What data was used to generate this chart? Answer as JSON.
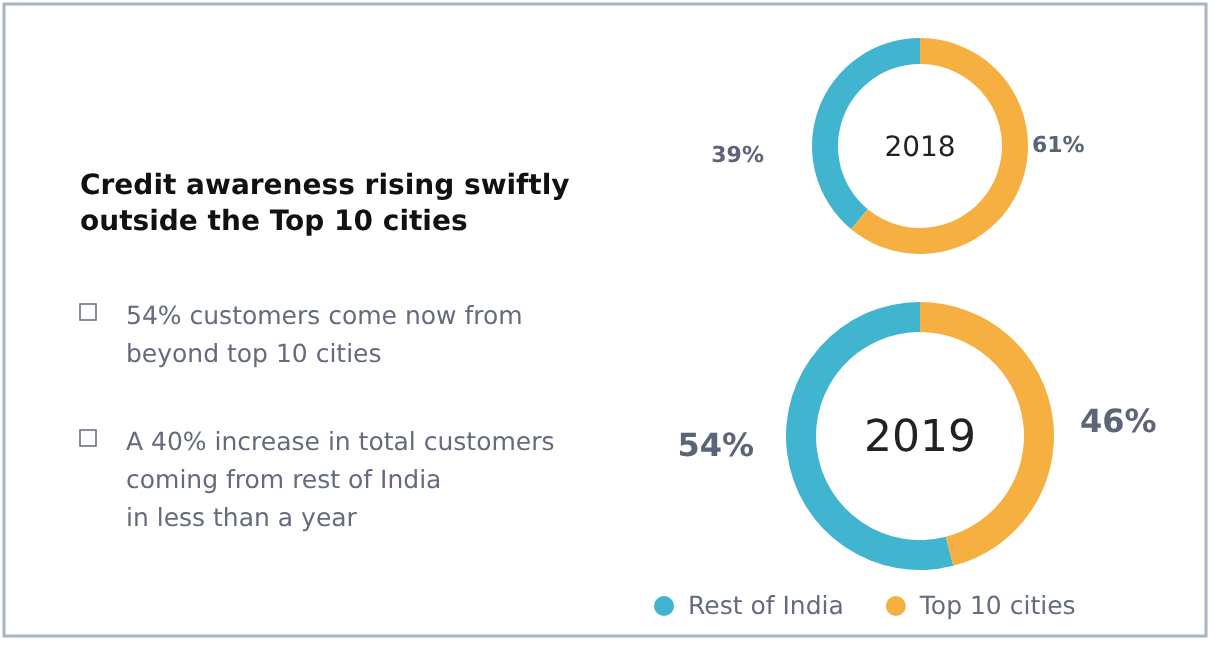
{
  "chart_data": [
    {
      "type": "other",
      "title": "Credit awareness rising swiftly\noutside the Top 10 cities",
      "annotations": [
        "54% customers come now from\nbeyond top 10 cities",
        "A 40% increase in total customers\ncoming from rest of India\nin less than a year"
      ]
    },
    {
      "type": "donut",
      "title": "2018",
      "categories": [
        null,
        null
      ],
      "values": [
        39,
        61
      ],
      "colors": [
        "#41b4d0",
        "#f6b041"
      ],
      "value_labels": [
        "39%",
        "61%"
      ],
      "legend": false
    },
    {
      "type": "donut",
      "title": "2019",
      "categories": [
        "Rest of India",
        "Top 10 cities"
      ],
      "values": [
        54,
        46
      ],
      "colors": [
        "#41b4d0",
        "#f6b041"
      ],
      "value_labels": [
        "54%",
        "46%"
      ],
      "legend": "bottom"
    }
  ]
}
